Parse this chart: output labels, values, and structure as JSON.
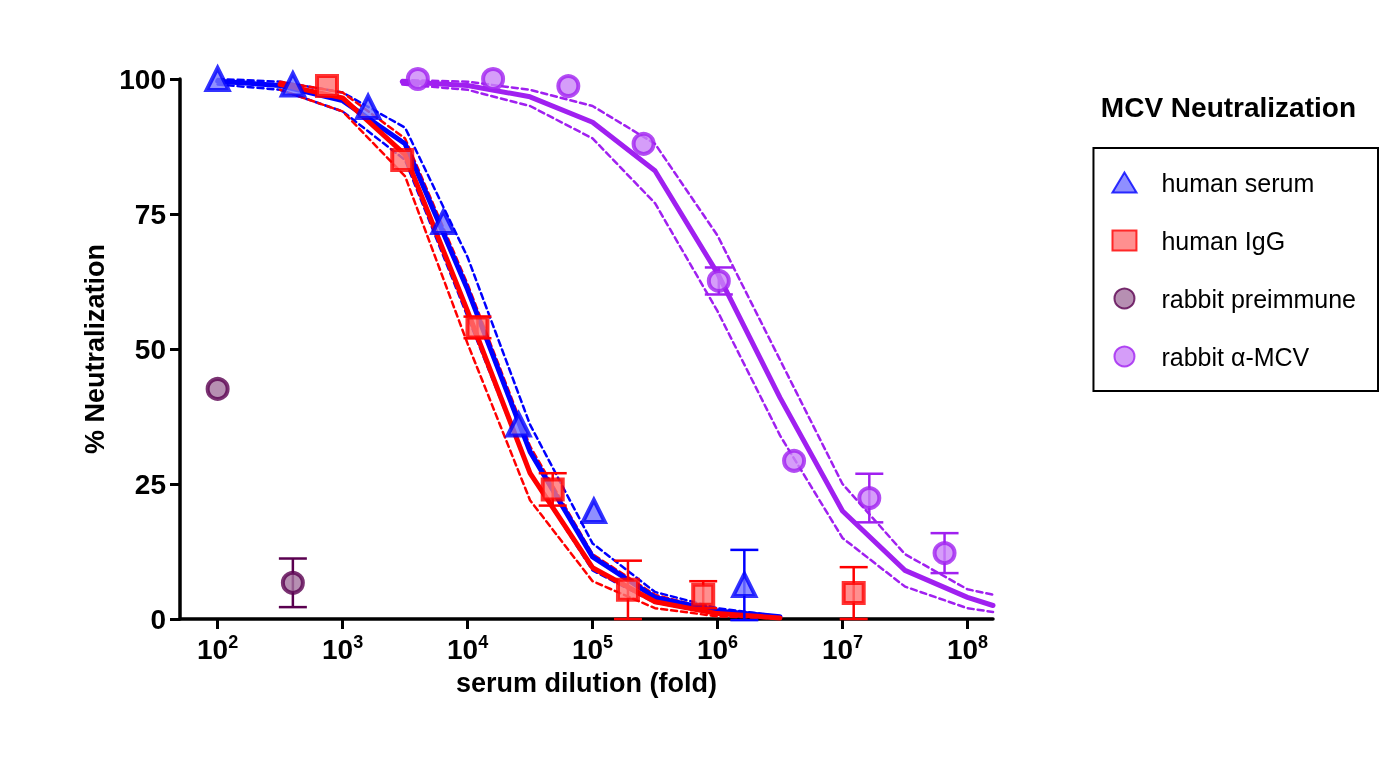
{
  "chart_data": {
    "type": "scatter",
    "xlabel": "serum dilution (fold)",
    "ylabel": "% Neutralization",
    "legend_title": "MCV Neutralization",
    "legend": "right",
    "log": "x",
    "grid": false,
    "xlim": [
      50,
      160000000
    ],
    "xticks": [
      {
        "value": 100,
        "label": "10$^{2}$"
      },
      {
        "value": 1000,
        "label": "10$^{3}$"
      },
      {
        "value": 10000,
        "label": "10$^{4}$"
      },
      {
        "value": 100000,
        "label": "10$^{5}$"
      },
      {
        "value": 1000000,
        "label": "10$^{6}$"
      },
      {
        "value": 10000000,
        "label": "10$^{7}$"
      },
      {
        "value": 100000000,
        "label": "10$^{8}$"
      }
    ],
    "ylim": [
      0,
      100
    ],
    "yticks": [
      0,
      25,
      50,
      75,
      100
    ],
    "series": [
      {
        "type": "line",
        "color": "#a020f0",
        "marker": "none",
        "line_style": "dashed",
        "x": [
          3000,
          10000,
          31600,
          100000,
          316000,
          1000000,
          3160000,
          10000000,
          31600000,
          100000000,
          160000000
        ],
        "values": [
          99.8,
          99.5,
          98,
          95,
          88,
          71,
          48,
          25,
          12,
          5.5,
          4.5
        ]
      },
      {
        "type": "line",
        "color": "#a020f0",
        "marker": "none",
        "line_style": "dashed",
        "x": [
          3000,
          10000,
          31600,
          100000,
          316000,
          1000000,
          3160000,
          10000000,
          31600000,
          100000000,
          160000000
        ],
        "values": [
          99,
          98,
          95,
          89,
          77,
          57,
          34,
          15,
          6,
          2,
          1.3
        ]
      },
      {
        "type": "line",
        "color": "#a020f0",
        "marker": "none",
        "line_style": "solid",
        "x": [
          3000,
          10000,
          31600,
          100000,
          316000,
          1000000,
          3160000,
          10000000,
          31600000,
          100000000,
          160000000
        ],
        "values": [
          99.5,
          98.8,
          96.7,
          92,
          83,
          64,
          41,
          20,
          9,
          4,
          2.5
        ]
      },
      {
        "type": "line",
        "color": "#0000ff",
        "marker": "none",
        "line_style": "dashed",
        "x": [
          100,
          316,
          1000,
          3160,
          10000,
          31600,
          100000,
          316000,
          1000000,
          3160000
        ],
        "values": [
          100,
          99.5,
          97.5,
          91,
          67,
          36,
          14,
          5,
          2,
          0.5
        ]
      },
      {
        "type": "line",
        "color": "#0000ff",
        "marker": "none",
        "line_style": "dashed",
        "x": [
          100,
          316,
          1000,
          3160,
          10000,
          31600,
          100000,
          316000,
          1000000,
          3160000
        ],
        "values": [
          99,
          98,
          94,
          85,
          56,
          27,
          9,
          3,
          1,
          0.2
        ]
      },
      {
        "type": "line",
        "color": "#ff0000",
        "marker": "none",
        "line_style": "dashed",
        "x": [
          316,
          1000,
          3160,
          10000,
          31600,
          100000,
          316000,
          1000000,
          3160000
        ],
        "values": [
          99.5,
          97.5,
          89,
          62,
          32,
          12,
          4.5,
          1.5,
          0.3
        ]
      },
      {
        "type": "line",
        "color": "#ff0000",
        "marker": "none",
        "line_style": "dashed",
        "x": [
          316,
          1000,
          3160,
          10000,
          31600,
          100000,
          316000,
          1000000,
          3160000
        ],
        "values": [
          98,
          94,
          82,
          51,
          22,
          7,
          2,
          0.5,
          0.1
        ]
      },
      {
        "type": "line",
        "color": "#0000ff",
        "marker": "none",
        "line_style": "solid",
        "x": [
          100,
          316,
          1000,
          3160,
          10000,
          31600,
          100000,
          316000,
          1000000,
          3160000
        ],
        "values": [
          99.6,
          98.8,
          96,
          88,
          61,
          31,
          11.5,
          4,
          1.5,
          0.4
        ]
      },
      {
        "type": "line",
        "color": "#ff0000",
        "marker": "none",
        "line_style": "solid",
        "x": [
          316,
          1000,
          3160,
          10000,
          31600,
          100000,
          316000,
          1000000,
          3160000
        ],
        "values": [
          99,
          96.5,
          86,
          57,
          27,
          9.5,
          3.2,
          1,
          0.2
        ]
      },
      {
        "name": "human serum",
        "color": "#0000ff",
        "marker": "triangle",
        "x": [
          100,
          400,
          1600,
          6400,
          25600,
          102400,
          1638400
        ],
        "values": [
          100,
          99,
          94.8,
          73.5,
          36,
          20,
          6.3
        ],
        "errors": [
          null,
          null,
          null,
          null,
          null,
          null,
          6.5
        ]
      },
      {
        "name": "human IgG",
        "color": "#ff0000",
        "marker": "square",
        "x": [
          750,
          3000,
          12000,
          48000,
          192000,
          768000,
          12288000
        ],
        "values": [
          98.7,
          85,
          54,
          24,
          5.4,
          4.5,
          4.8
        ],
        "errors": [
          null,
          null,
          2,
          3,
          5.4,
          2.5,
          4.8
        ]
      },
      {
        "name": "rabbit preimmune",
        "color": "#5a0050",
        "marker": "circle",
        "x": [
          100,
          400
        ],
        "values": [
          42.6,
          6.7
        ],
        "errors": [
          null,
          4.5
        ]
      },
      {
        "name": "rabbit α-MCV",
        "color": "#a020f0",
        "marker": "circle",
        "x": [
          4000,
          16000,
          64000,
          256000,
          1024000,
          4096000,
          16384000,
          65536000
        ],
        "values": [
          100,
          100,
          98.7,
          88,
          62.6,
          29.3,
          22.4,
          12.2
        ],
        "errors": [
          null,
          null,
          null,
          null,
          2.5,
          null,
          4.5,
          3.7
        ]
      }
    ]
  }
}
